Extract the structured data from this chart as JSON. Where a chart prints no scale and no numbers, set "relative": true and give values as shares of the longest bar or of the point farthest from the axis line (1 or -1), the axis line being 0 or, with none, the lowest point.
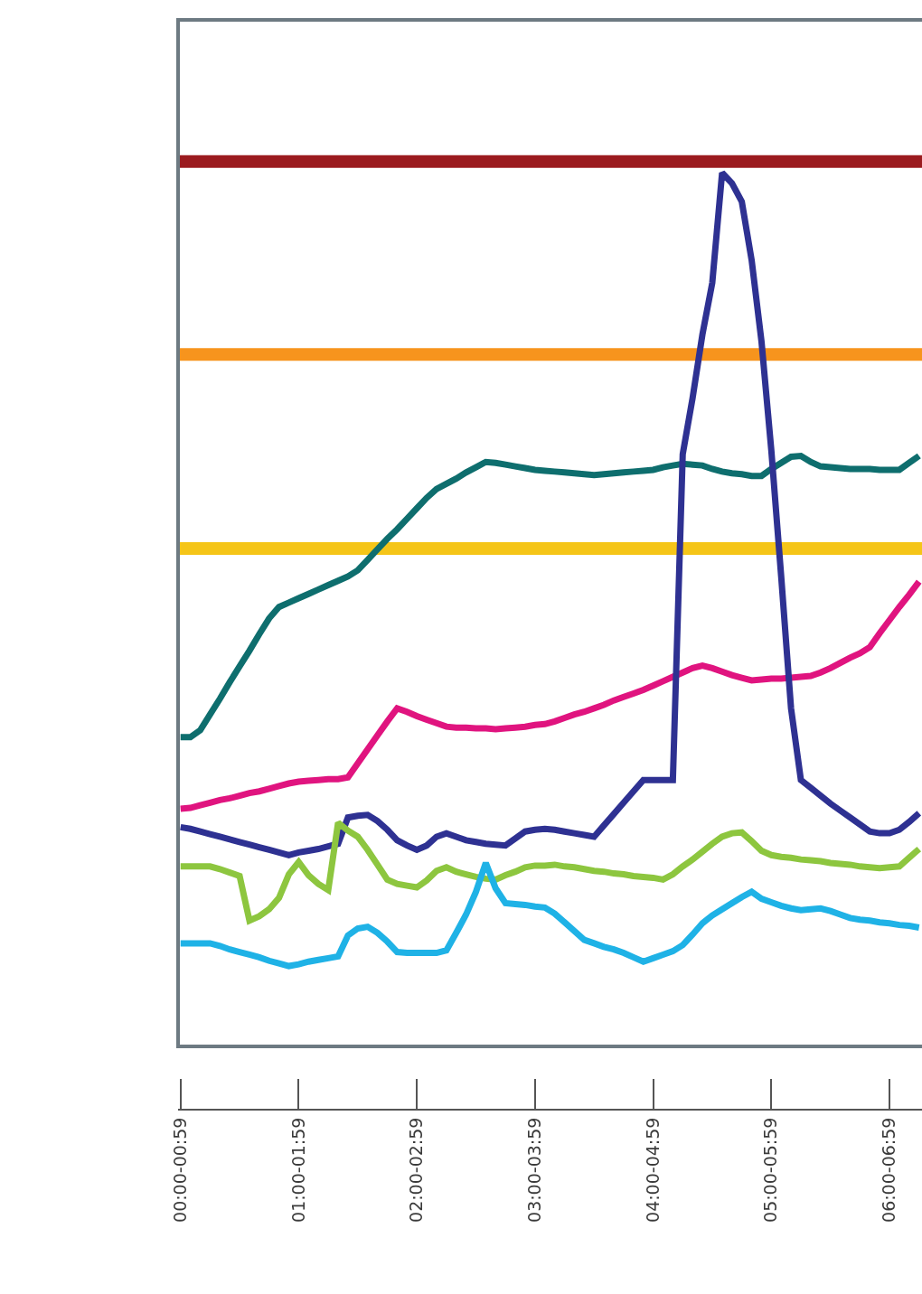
{
  "chart_data": {
    "type": "line",
    "relative": true,
    "grid": false,
    "tick_labels": "x",
    "marker": "none",
    "line_style": "solid",
    "categories": [
      "00:00-00:59",
      null,
      null,
      null,
      null,
      null,
      null,
      null,
      null,
      null,
      null,
      null,
      "01:00-01:59",
      null,
      null,
      null,
      null,
      null,
      null,
      null,
      null,
      null,
      null,
      null,
      "02:00-02:59",
      null,
      null,
      null,
      null,
      null,
      null,
      null,
      null,
      null,
      null,
      null,
      "03:00-03:59",
      null,
      null,
      null,
      null,
      null,
      null,
      null,
      null,
      null,
      null,
      null,
      "04:00-04:59",
      null,
      null,
      null,
      null,
      null,
      null,
      null,
      null,
      null,
      null,
      null,
      "05:00-05:59",
      null,
      null,
      null,
      null,
      null,
      null,
      null,
      null,
      null,
      null,
      null,
      "06:00-06:59",
      null,
      null,
      null
    ],
    "series": [
      {
        "color": "#0e6e6e",
        "values": [
          0.354,
          0.354,
          0.362,
          0.38,
          0.398,
          0.417,
          0.435,
          0.453,
          0.472,
          0.49,
          0.503,
          0.508,
          0.513,
          0.518,
          0.523,
          0.528,
          0.533,
          0.538,
          0.545,
          0.557,
          0.569,
          0.581,
          0.592,
          0.604,
          0.616,
          0.628,
          0.638,
          0.644,
          0.65,
          0.657,
          0.663,
          0.669,
          0.668,
          0.666,
          0.664,
          0.662,
          0.66,
          0.659,
          0.658,
          0.657,
          0.656,
          0.655,
          0.654,
          0.655,
          0.656,
          0.657,
          0.658,
          0.659,
          0.66,
          0.663,
          0.665,
          0.667,
          0.666,
          0.665,
          0.661,
          0.658,
          0.656,
          0.655,
          0.653,
          0.653,
          0.661,
          0.668,
          0.675,
          0.676,
          0.669,
          0.664,
          0.663,
          0.662,
          0.661,
          0.661,
          0.661,
          0.66,
          0.66,
          0.66,
          0.668,
          0.676
        ]
      },
      {
        "color": "#e0147f",
        "values": [
          0.272,
          0.273,
          0.276,
          0.279,
          0.282,
          0.284,
          0.287,
          0.29,
          0.292,
          0.295,
          0.298,
          0.301,
          0.303,
          0.304,
          0.305,
          0.306,
          0.306,
          0.308,
          0.324,
          0.34,
          0.356,
          0.372,
          0.387,
          0.383,
          0.378,
          0.374,
          0.37,
          0.366,
          0.365,
          0.365,
          0.364,
          0.364,
          0.363,
          0.364,
          0.365,
          0.366,
          0.368,
          0.369,
          0.372,
          0.376,
          0.38,
          0.383,
          0.387,
          0.391,
          0.396,
          0.4,
          0.404,
          0.408,
          0.413,
          0.418,
          0.423,
          0.428,
          0.433,
          0.436,
          0.433,
          0.429,
          0.425,
          0.422,
          0.419,
          0.42,
          0.421,
          0.421,
          0.422,
          0.423,
          0.424,
          0.428,
          0.433,
          0.439,
          0.445,
          0.45,
          0.457,
          0.473,
          0.488,
          0.503,
          0.517,
          0.532
        ]
      },
      {
        "color": "#2e3192",
        "values": [
          0.251,
          0.249,
          0.246,
          0.243,
          0.24,
          0.237,
          0.234,
          0.231,
          0.228,
          0.225,
          0.222,
          0.219,
          0.222,
          0.224,
          0.226,
          0.229,
          0.232,
          0.262,
          0.264,
          0.265,
          0.258,
          0.248,
          0.236,
          0.23,
          0.225,
          0.23,
          0.24,
          0.244,
          0.24,
          0.236,
          0.234,
          0.232,
          0.231,
          0.23,
          0.238,
          0.246,
          0.248,
          0.249,
          0.248,
          0.246,
          0.244,
          0.242,
          0.24,
          0.253,
          0.266,
          0.279,
          0.292,
          0.305,
          0.305,
          0.305,
          0.305,
          0.678,
          0.742,
          0.815,
          0.874,
          1,
          0.988,
          0.967,
          0.9,
          0.807,
          0.682,
          0.538,
          0.387,
          0.305,
          0.296,
          0.287,
          0.278,
          0.27,
          0.262,
          0.254,
          0.246,
          0.244,
          0.244,
          0.248,
          0.257,
          0.267
        ]
      },
      {
        "color": "#8dc63f",
        "values": [
          0.206,
          0.206,
          0.206,
          0.206,
          0.203,
          0.199,
          0.195,
          0.144,
          0.149,
          0.157,
          0.17,
          0.197,
          0.211,
          0.196,
          0.186,
          0.179,
          0.256,
          0.247,
          0.24,
          0.225,
          0.208,
          0.191,
          0.186,
          0.184,
          0.182,
          0.19,
          0.201,
          0.205,
          0.2,
          0.197,
          0.194,
          0.192,
          0.191,
          0.196,
          0.2,
          0.205,
          0.207,
          0.207,
          0.208,
          0.206,
          0.205,
          0.203,
          0.201,
          0.2,
          0.198,
          0.197,
          0.195,
          0.194,
          0.193,
          0.191,
          0.197,
          0.206,
          0.214,
          0.223,
          0.232,
          0.24,
          0.244,
          0.245,
          0.235,
          0.224,
          0.219,
          0.217,
          0.216,
          0.214,
          0.213,
          0.212,
          0.21,
          0.209,
          0.208,
          0.206,
          0.205,
          0.204,
          0.205,
          0.206,
          0.216,
          0.226
        ]
      },
      {
        "color": "#1fb2e6",
        "values": [
          0.118,
          0.118,
          0.118,
          0.118,
          0.115,
          0.111,
          0.108,
          0.105,
          0.102,
          0.098,
          0.095,
          0.092,
          0.094,
          0.097,
          0.099,
          0.101,
          0.103,
          0.127,
          0.135,
          0.137,
          0.13,
          0.12,
          0.108,
          0.107,
          0.107,
          0.107,
          0.107,
          0.11,
          0.13,
          0.151,
          0.177,
          0.21,
          0.181,
          0.164,
          0.163,
          0.162,
          0.16,
          0.159,
          0.152,
          0.142,
          0.132,
          0.122,
          0.118,
          0.114,
          0.111,
          0.107,
          0.102,
          0.097,
          0.101,
          0.105,
          0.109,
          0.116,
          0.128,
          0.141,
          0.15,
          0.157,
          0.164,
          0.171,
          0.177,
          0.169,
          0.165,
          0.161,
          0.158,
          0.156,
          0.157,
          0.158,
          0.155,
          0.151,
          0.147,
          0.145,
          0.144,
          0.142,
          0.141,
          0.139,
          0.138,
          0.136
        ]
      }
    ],
    "ref_lines": [
      {
        "axis": "y",
        "value": 1.013,
        "color": "#9b1b1f"
      },
      {
        "axis": "y",
        "value": 0.792,
        "color": "#f7941d"
      },
      {
        "axis": "y",
        "value": 0.57,
        "color": "#f5c518"
      }
    ]
  }
}
